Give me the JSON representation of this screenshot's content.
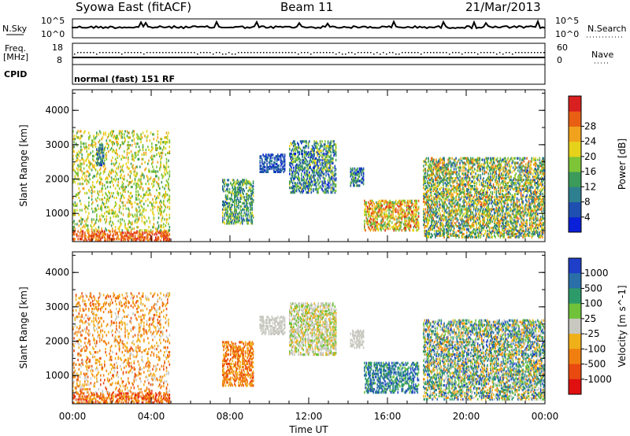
{
  "header": {
    "station": "Syowa East (fitACF)",
    "beam": "Beam 11",
    "date": "21/Mar/2013"
  },
  "status_panels": {
    "nsky_label": "N.Sky",
    "nsky_ticks": [
      "10^5",
      "10^0"
    ],
    "nsearch_label": "N.Search",
    "nsearch_ticks": [
      "10^5",
      "10^0"
    ],
    "freq_label_1": "Freq.",
    "freq_label_2": "[MHz]",
    "freq_ticks": [
      "18",
      "8"
    ],
    "nave_label": "Nave",
    "nave_ticks": [
      "60",
      "0"
    ],
    "cpid_label": "CPID",
    "cpid_text": "normal (fast) 151 RF"
  },
  "chart_data": [
    {
      "type": "heatmap",
      "name": "power",
      "ylabel": "Slant Range [km]",
      "xlabel": "Time UT",
      "x_ticks": [
        "00:00",
        "04:00",
        "08:00",
        "12:00",
        "16:00",
        "20:00",
        "00:00"
      ],
      "xlim_hours": [
        0,
        24
      ],
      "y_ticks": [
        "1000",
        "2000",
        "3000",
        "4000"
      ],
      "ylim_km": [
        180,
        4600
      ],
      "colorbar": {
        "label": "Power [dB]",
        "ticks": [
          "4",
          "8",
          "12",
          "16",
          "20",
          "24",
          "28"
        ],
        "colors": [
          "#0a1fd8",
          "#1f4fb0",
          "#2e7f8f",
          "#3c9a5a",
          "#7dc436",
          "#e6d21a",
          "#f0a21c",
          "#e85f14",
          "#d92020"
        ]
      },
      "regions": [
        {
          "t": [
            0.0,
            4.9
          ],
          "r": [
            200,
            500
          ],
          "level": [
            6,
            8
          ]
        },
        {
          "t": [
            0.0,
            4.9
          ],
          "r": [
            500,
            3400
          ],
          "level": [
            3,
            6
          ],
          "density": 0.18
        },
        {
          "t": [
            1.2,
            1.6
          ],
          "r": [
            2400,
            3000
          ],
          "level": [
            0,
            3
          ]
        },
        {
          "t": [
            7.6,
            9.2
          ],
          "r": [
            700,
            2000
          ],
          "level": [
            1,
            5
          ]
        },
        {
          "t": [
            9.5,
            10.8
          ],
          "r": [
            2200,
            2700
          ],
          "level": [
            0,
            2
          ]
        },
        {
          "t": [
            11.0,
            13.4
          ],
          "r": [
            1600,
            3100
          ],
          "level": [
            0,
            5
          ]
        },
        {
          "t": [
            14.1,
            14.8
          ],
          "r": [
            1800,
            2300
          ],
          "level": [
            0,
            4
          ]
        },
        {
          "t": [
            14.8,
            17.6
          ],
          "r": [
            500,
            1400
          ],
          "level": [
            3,
            8
          ]
        },
        {
          "t": [
            17.8,
            24.0
          ],
          "r": [
            300,
            2600
          ],
          "level": [
            1,
            7
          ]
        }
      ]
    },
    {
      "type": "heatmap",
      "name": "velocity",
      "ylabel": "Slant Range [km]",
      "xlabel": "Time UT",
      "x_ticks": [
        "00:00",
        "04:00",
        "08:00",
        "12:00",
        "16:00",
        "20:00",
        "00:00"
      ],
      "xlim_hours": [
        0,
        24
      ],
      "y_ticks": [
        "1000",
        "2000",
        "3000",
        "4000"
      ],
      "ylim_km": [
        180,
        4600
      ],
      "colorbar": {
        "label": "Velocity [m s^-1]",
        "ticks": [
          "1000",
          "500",
          "100",
          "25",
          "-25",
          "-100",
          "-500",
          "-1000"
        ],
        "colors": [
          "#1f3fc8",
          "#2a6fa8",
          "#2d9a6a",
          "#6fc23a",
          "#c8c8c0",
          "#f0b01a",
          "#f07f10",
          "#e84a10",
          "#e01010"
        ]
      },
      "regions": [
        {
          "t": [
            0.0,
            4.9
          ],
          "r": [
            200,
            500
          ],
          "level": [
            5,
            8
          ]
        },
        {
          "t": [
            0.0,
            4.9
          ],
          "r": [
            500,
            3400
          ],
          "level": [
            4,
            7
          ],
          "density": 0.16
        },
        {
          "t": [
            7.6,
            9.2
          ],
          "r": [
            700,
            2000
          ],
          "level": [
            5,
            7
          ]
        },
        {
          "t": [
            9.5,
            10.8
          ],
          "r": [
            2200,
            2700
          ],
          "level": [
            4,
            4
          ]
        },
        {
          "t": [
            11.0,
            13.4
          ],
          "r": [
            1600,
            3100
          ],
          "level": [
            3,
            5
          ]
        },
        {
          "t": [
            14.1,
            14.8
          ],
          "r": [
            1800,
            2300
          ],
          "level": [
            4,
            4
          ]
        },
        {
          "t": [
            14.8,
            17.6
          ],
          "r": [
            500,
            1400
          ],
          "level": [
            0,
            3
          ]
        },
        {
          "t": [
            17.8,
            24.0
          ],
          "r": [
            300,
            2600
          ],
          "level": [
            0,
            6
          ]
        }
      ]
    }
  ]
}
